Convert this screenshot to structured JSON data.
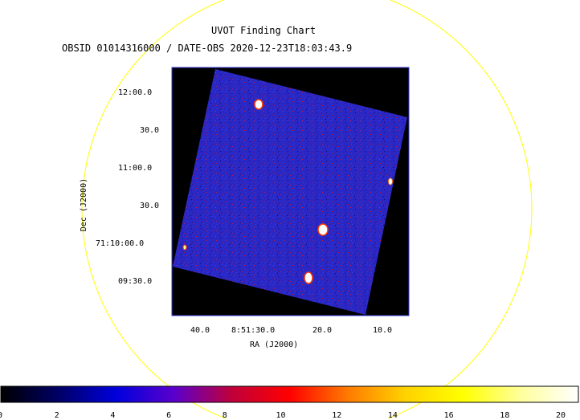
{
  "header": {
    "title": "UVOT Finding Chart",
    "subtitle": "OBSID 01014316000 / DATE-OBS 2020-12-23T18:03:43.9"
  },
  "axes": {
    "xlabel": "RA (J2000)",
    "ylabel": "Dec (J2000)",
    "ra_ticks": [
      "40.0",
      "8:51:30.0",
      "20.0",
      "10.0"
    ],
    "dec_ticks": [
      "12:00.0",
      "30.0",
      "11:00.0",
      "30.0",
      "71:10:00.0",
      "09:30.0"
    ]
  },
  "colorbar": {
    "ticks": [
      "0",
      "2",
      "4",
      "6",
      "8",
      "10",
      "12",
      "14",
      "16",
      "18",
      "20"
    ],
    "colors": [
      "#000000",
      "#000066",
      "#0000dd",
      "#5a00cc",
      "#c0003a",
      "#ff0000",
      "#ff7a00",
      "#ffd200",
      "#ffff00",
      "#ffff9c",
      "#ffffff"
    ]
  },
  "colors": {
    "overlay_circle": "#ffff00",
    "image_border": "#3a3adc",
    "field_background": "#000000",
    "field_fill": "#2828c8",
    "source": "#ffffff"
  },
  "sources_count_label": ""
}
